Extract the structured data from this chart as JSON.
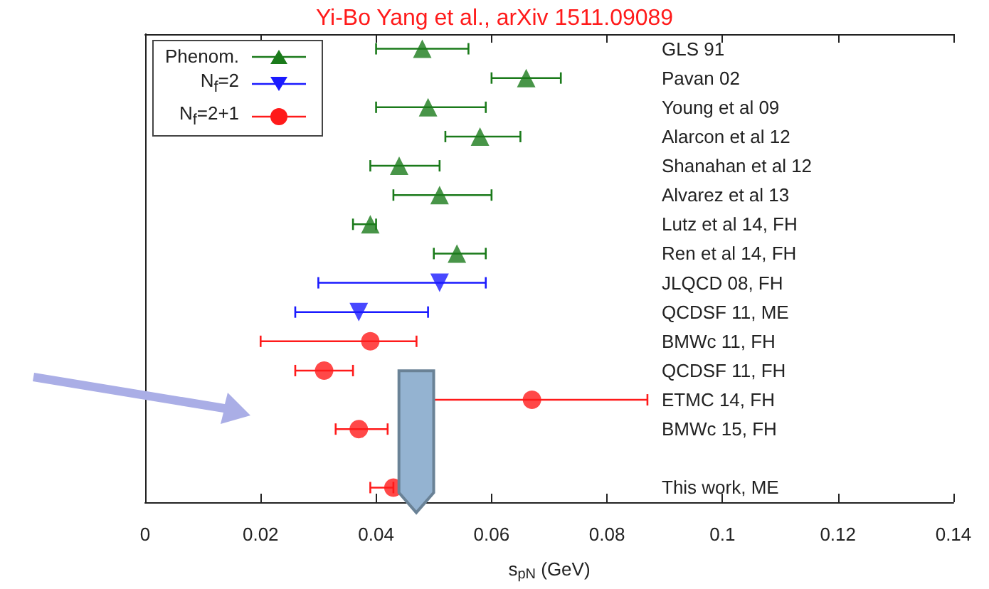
{
  "chart_data": {
    "type": "scatter",
    "orientation": "horizontal",
    "title": "Yi-Bo Yang et al., arXiv 1511.09089",
    "xlabel": "s$_{pN}$ (GeV)",
    "categories": [
      "GLS 91",
      "Pavan 02",
      "Young et al 09",
      "Alarcon et al 12",
      "Shanahan et al 12",
      "Alvarez et al 13",
      "Lutz et al 14, FH",
      "Ren et al 14, FH",
      "JLQCD 08, FH",
      "QCDSF 11, ME",
      "BMWc 11, FH",
      "QCDSF 11, FH",
      "ETMC 14, FH",
      "BMWc 15, FH",
      null,
      "This work, ME"
    ],
    "series": [
      {
        "name": "Phenom.",
        "color": "#1a7a1a",
        "marker": "triangle",
        "values": [
          0.048,
          0.066,
          0.049,
          0.058,
          0.044,
          0.051,
          0.039,
          0.054,
          null,
          null,
          null,
          null,
          null,
          null,
          null,
          null
        ],
        "errors": [
          [
            0.04,
            0.056
          ],
          [
            0.06,
            0.072
          ],
          [
            0.04,
            0.059
          ],
          [
            0.052,
            0.065
          ],
          [
            0.039,
            0.051
          ],
          [
            0.043,
            0.06
          ],
          [
            0.036,
            0.04
          ],
          [
            0.05,
            0.059
          ],
          null,
          null,
          null,
          null,
          null,
          null,
          null,
          null
        ]
      },
      {
        "name": "N$_{f}$=2",
        "color": "#1a1aff",
        "marker": "triangle-down",
        "values": [
          null,
          null,
          null,
          null,
          null,
          null,
          null,
          null,
          0.051,
          0.037,
          null,
          null,
          null,
          null,
          null,
          null
        ],
        "errors": [
          null,
          null,
          null,
          null,
          null,
          null,
          null,
          null,
          [
            0.03,
            0.059
          ],
          [
            0.026,
            0.049
          ],
          null,
          null,
          null,
          null,
          null,
          null
        ]
      },
      {
        "name": "N$_{f}$=2+1",
        "color": "#ff1a1a",
        "marker": "circle",
        "values": [
          null,
          null,
          null,
          null,
          null,
          null,
          null,
          null,
          null,
          null,
          0.039,
          0.031,
          0.067,
          0.037,
          null,
          0.043
        ],
        "errors": [
          null,
          null,
          null,
          null,
          null,
          null,
          null,
          null,
          null,
          null,
          [
            0.02,
            0.047
          ],
          [
            0.026,
            0.036
          ],
          [
            0.05,
            0.087
          ],
          [
            0.033,
            0.042
          ],
          null,
          [
            0.039,
            0.043
          ]
        ]
      }
    ],
    "xlim": [
      0,
      0.14
    ],
    "xticks": [
      0,
      0.02,
      0.04,
      0.06,
      0.08,
      0.1,
      0.12,
      0.14
    ],
    "grid": false,
    "legend": "top left"
  }
}
